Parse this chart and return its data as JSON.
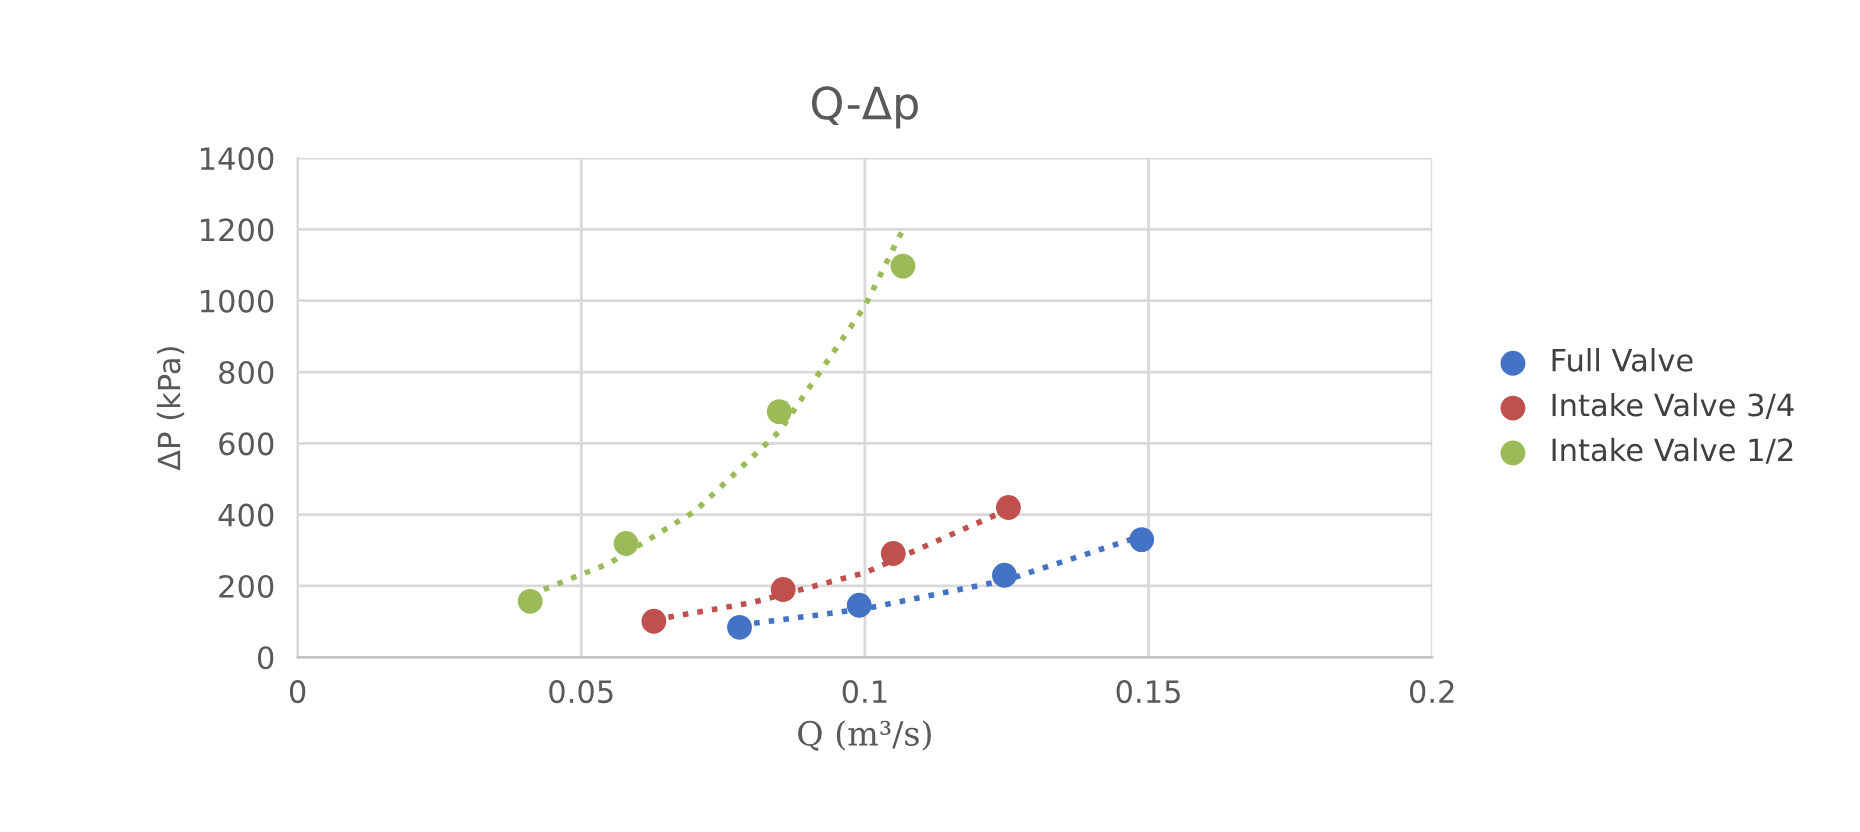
{
  "chart_data": {
    "type": "scatter",
    "title": "Q-Δp",
    "xlabel": "Q (m³/s)",
    "ylabel": "ΔP (kPa)",
    "xlim": [
      0,
      0.2
    ],
    "xticks": [
      0,
      0.05,
      0.1,
      0.15,
      0.2
    ],
    "ylim": [
      0,
      1400
    ],
    "yticks": [
      0,
      200,
      400,
      600,
      800,
      1000,
      1200,
      1400
    ],
    "grid": true,
    "legend": "right",
    "series": [
      {
        "type": "line",
        "line_style": "dotted",
        "marker": "none",
        "color": "#4472c4",
        "x": [
          0.0779,
          0.1,
          0.125,
          0.1488
        ],
        "values": [
          90,
          136,
          217,
          340
        ]
      },
      {
        "type": "line",
        "line_style": "dotted",
        "marker": "none",
        "color": "#c0504d",
        "x": [
          0.0628,
          0.08,
          0.1,
          0.1253
        ],
        "values": [
          105,
          153,
          237,
          415
        ]
      },
      {
        "type": "line",
        "line_style": "dotted",
        "marker": "none",
        "color": "#9bbb59",
        "x": [
          0.041,
          0.055,
          0.07,
          0.085,
          0.1,
          0.1067
        ],
        "values": [
          175,
          264,
          409,
          635,
          985,
          1200
        ]
      },
      {
        "name": "Full Valve",
        "marker": "circle",
        "color": "#4472c4",
        "x": [
          0.0779,
          0.099,
          0.1246,
          0.1488
        ],
        "values": [
          84,
          146,
          230,
          330
        ]
      },
      {
        "name": "Intake Valve 3/4",
        "marker": "circle",
        "color": "#c0504d",
        "x": [
          0.0628,
          0.0856,
          0.105,
          0.1253
        ],
        "values": [
          101,
          190,
          291,
          420
        ]
      },
      {
        "name": "Intake Valve 1/2",
        "marker": "circle",
        "color": "#9bbb59",
        "x": [
          0.041,
          0.0579,
          0.0849,
          0.1067
        ],
        "values": [
          157,
          319,
          689,
          1097
        ]
      }
    ]
  }
}
